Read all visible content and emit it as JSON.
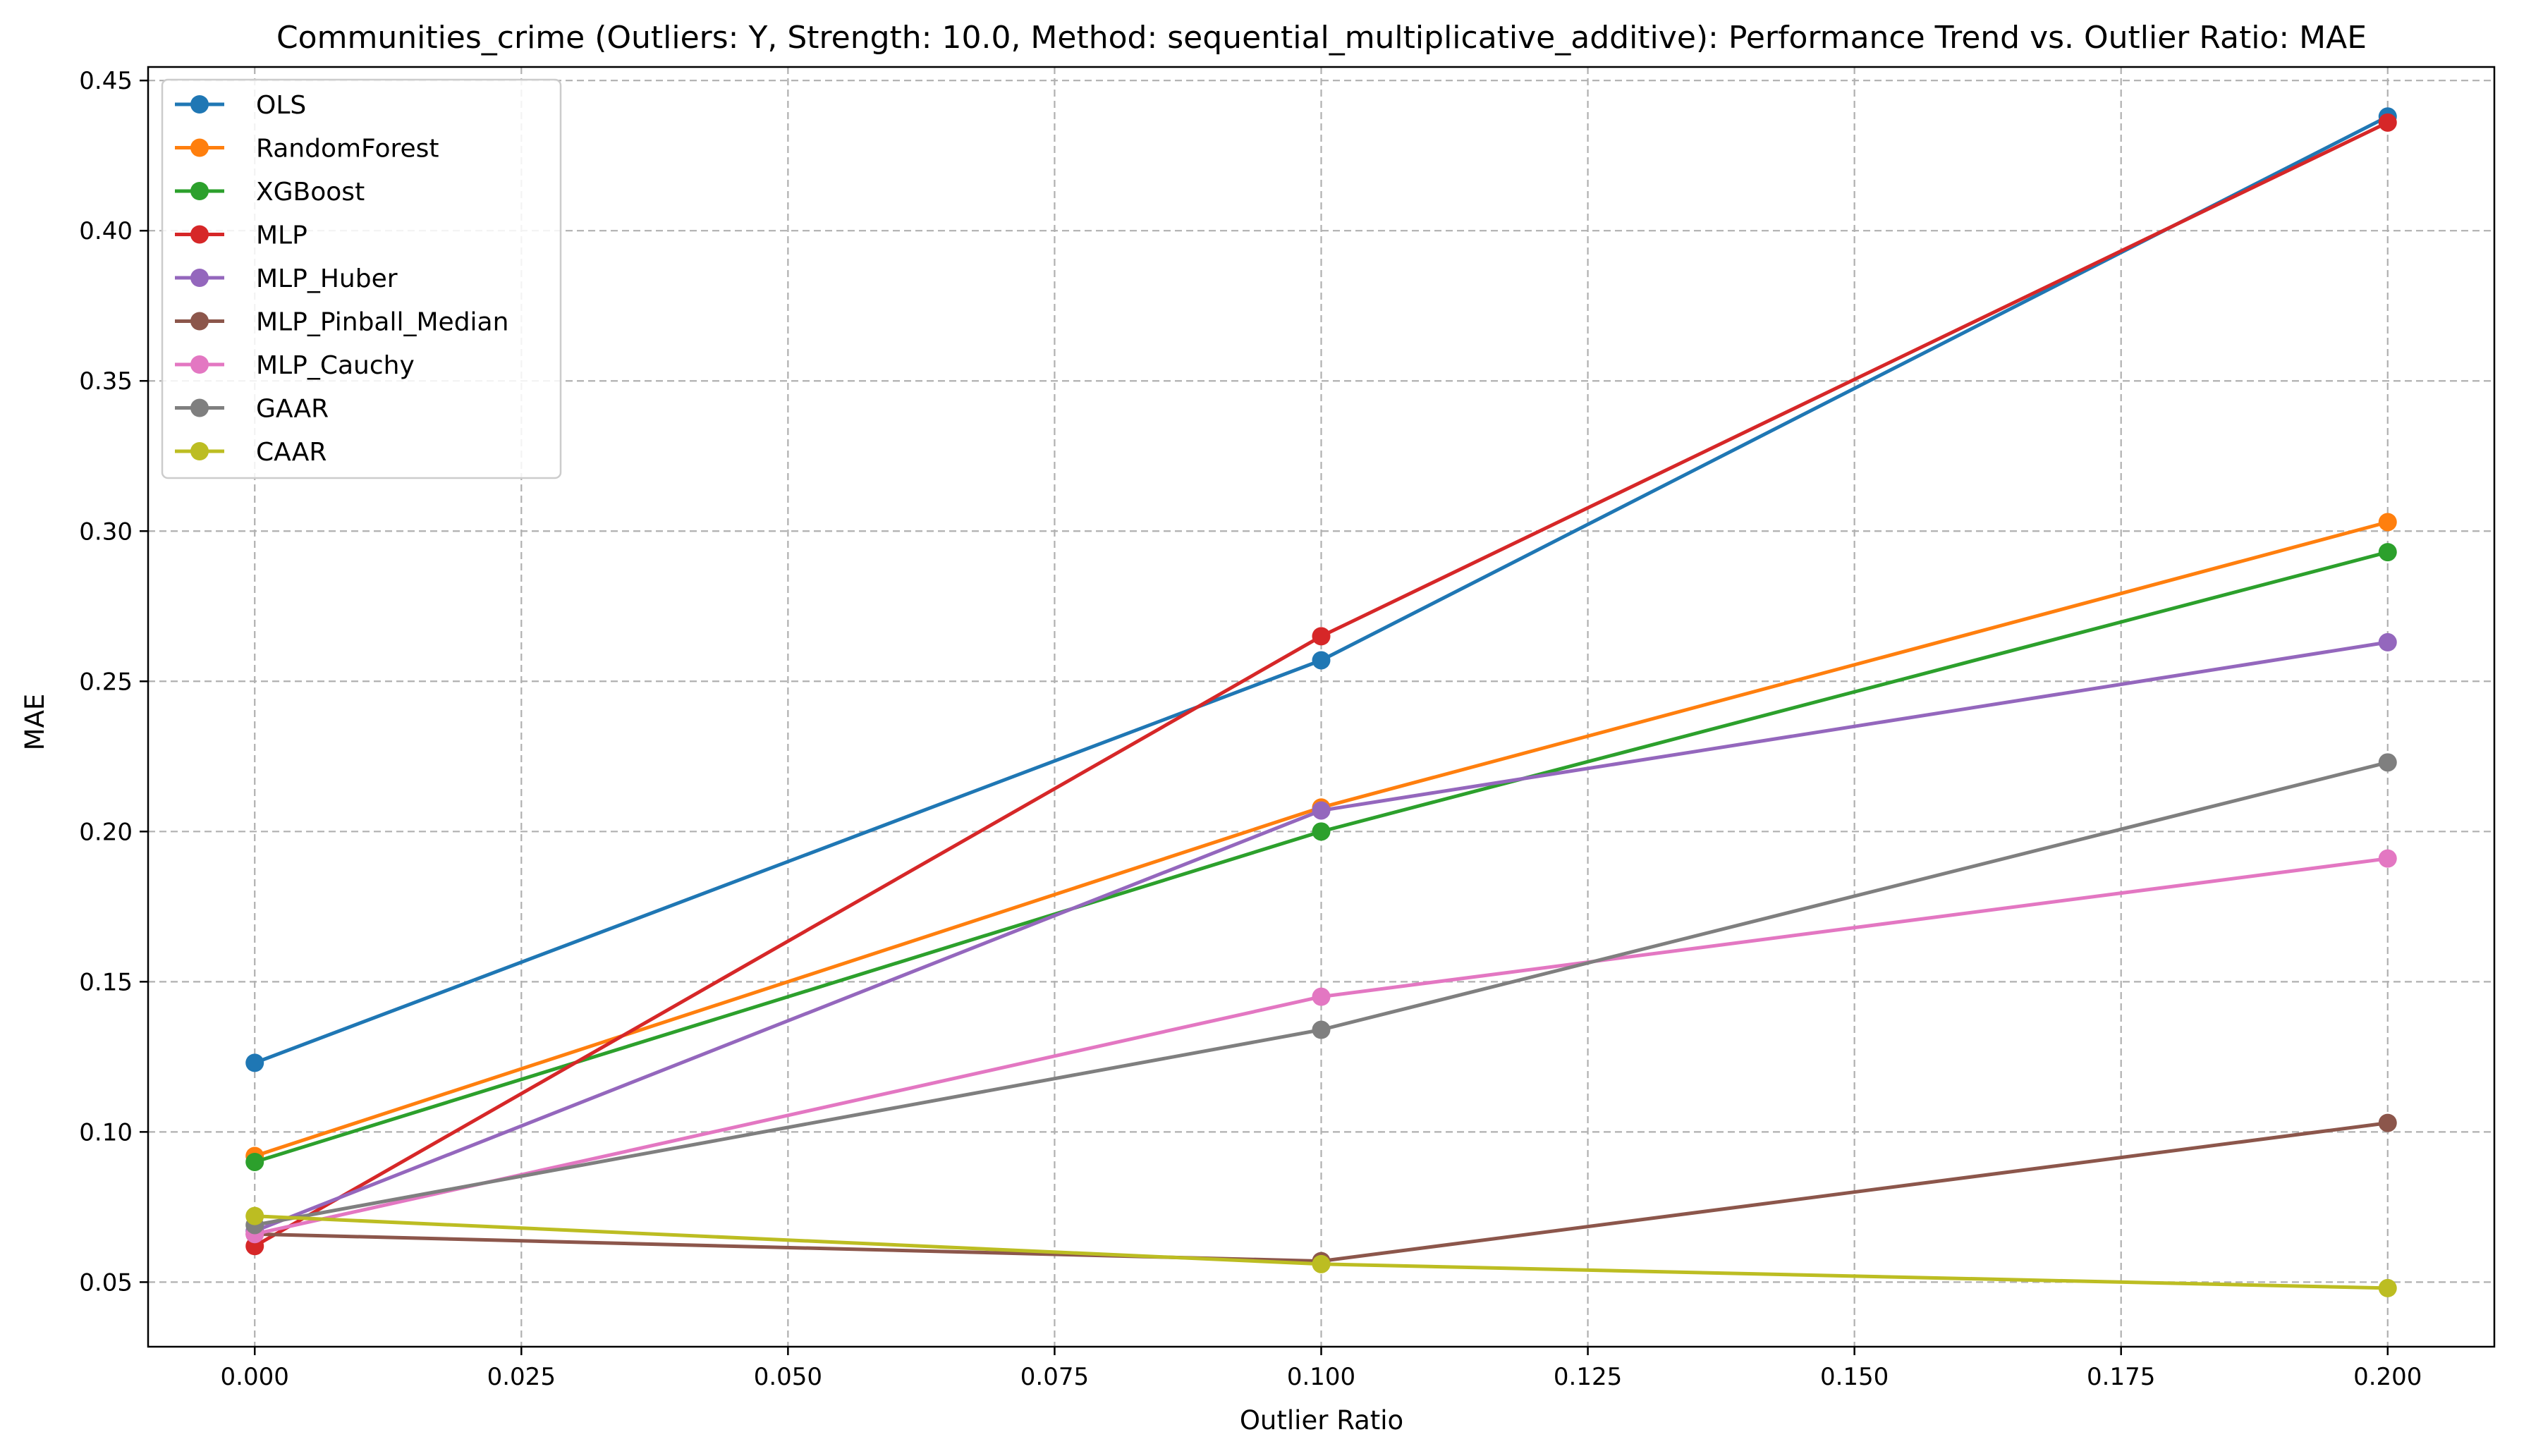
{
  "chart_data": {
    "type": "line",
    "title": "Communities_crime (Outliers: Y, Strength: 10.0, Method: sequential_multiplicative_additive): Performance Trend vs. Outlier Ratio: MAE",
    "xlabel": "Outlier Ratio",
    "ylabel": "MAE",
    "x": [
      0.0,
      0.1,
      0.2
    ],
    "xlim": [
      -0.01,
      0.21
    ],
    "ylim": [
      0.0285,
      0.4545
    ],
    "xticks": [
      0.0,
      0.025,
      0.05,
      0.075,
      0.1,
      0.125,
      0.15,
      0.175,
      0.2
    ],
    "xtick_labels": [
      "0.000",
      "0.025",
      "0.050",
      "0.075",
      "0.100",
      "0.125",
      "0.150",
      "0.175",
      "0.200"
    ],
    "yticks": [
      0.05,
      0.1,
      0.15,
      0.2,
      0.25,
      0.3,
      0.35,
      0.4,
      0.45
    ],
    "ytick_labels": [
      "0.05",
      "0.10",
      "0.15",
      "0.20",
      "0.25",
      "0.30",
      "0.35",
      "0.40",
      "0.45"
    ],
    "grid": true,
    "legend_position": "upper-left",
    "series": [
      {
        "name": "OLS",
        "color": "#1f77b4",
        "values": [
          0.123,
          0.257,
          0.438
        ]
      },
      {
        "name": "RandomForest",
        "color": "#ff7f0e",
        "values": [
          0.092,
          0.208,
          0.303
        ]
      },
      {
        "name": "XGBoost",
        "color": "#2ca02c",
        "values": [
          0.09,
          0.2,
          0.293
        ]
      },
      {
        "name": "MLP",
        "color": "#d62728",
        "values": [
          0.062,
          0.265,
          0.436
        ]
      },
      {
        "name": "MLP_Huber",
        "color": "#9467bd",
        "values": [
          0.067,
          0.207,
          0.263
        ]
      },
      {
        "name": "MLP_Pinball_Median",
        "color": "#8c564b",
        "values": [
          0.066,
          0.057,
          0.103
        ]
      },
      {
        "name": "MLP_Cauchy",
        "color": "#e377c2",
        "values": [
          0.066,
          0.145,
          0.191
        ]
      },
      {
        "name": "GAAR",
        "color": "#7f7f7f",
        "values": [
          0.069,
          0.134,
          0.223
        ]
      },
      {
        "name": "CAAR",
        "color": "#bcbd22",
        "values": [
          0.072,
          0.056,
          0.048
        ]
      }
    ]
  }
}
